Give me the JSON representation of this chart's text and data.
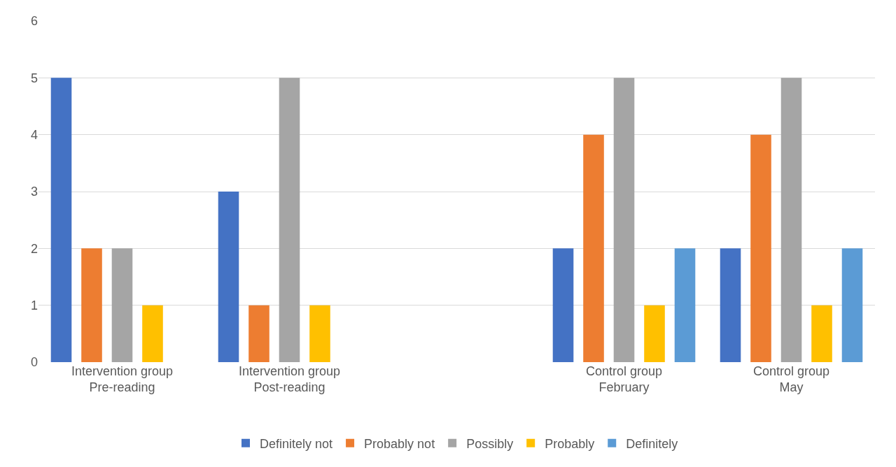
{
  "chart_data": {
    "type": "bar",
    "categories": [
      "Intervention group\nPre-reading",
      "Intervention group\nPost-reading",
      null,
      "Control group\nFebruary",
      "Control group\nMay"
    ],
    "series": [
      {
        "name": "Definitely not",
        "color": "#4472c4",
        "values": [
          5,
          3,
          null,
          2,
          2
        ]
      },
      {
        "name": "Probably not",
        "color": "#ed7d31",
        "values": [
          2,
          1,
          null,
          4,
          4
        ]
      },
      {
        "name": "Possibly",
        "color": "#a5a5a5",
        "values": [
          2,
          5,
          null,
          5,
          5
        ]
      },
      {
        "name": "Probably",
        "color": "#ffc000",
        "values": [
          1,
          1,
          null,
          1,
          1
        ]
      },
      {
        "name": "Definitely",
        "color": "#5b9bd5",
        "values": [
          0,
          0,
          null,
          2,
          2
        ]
      }
    ],
    "ylim": [
      0,
      6
    ],
    "yticks": [
      0,
      1,
      2,
      3,
      4,
      5,
      6
    ],
    "grid": "y",
    "legend": "bottom"
  }
}
